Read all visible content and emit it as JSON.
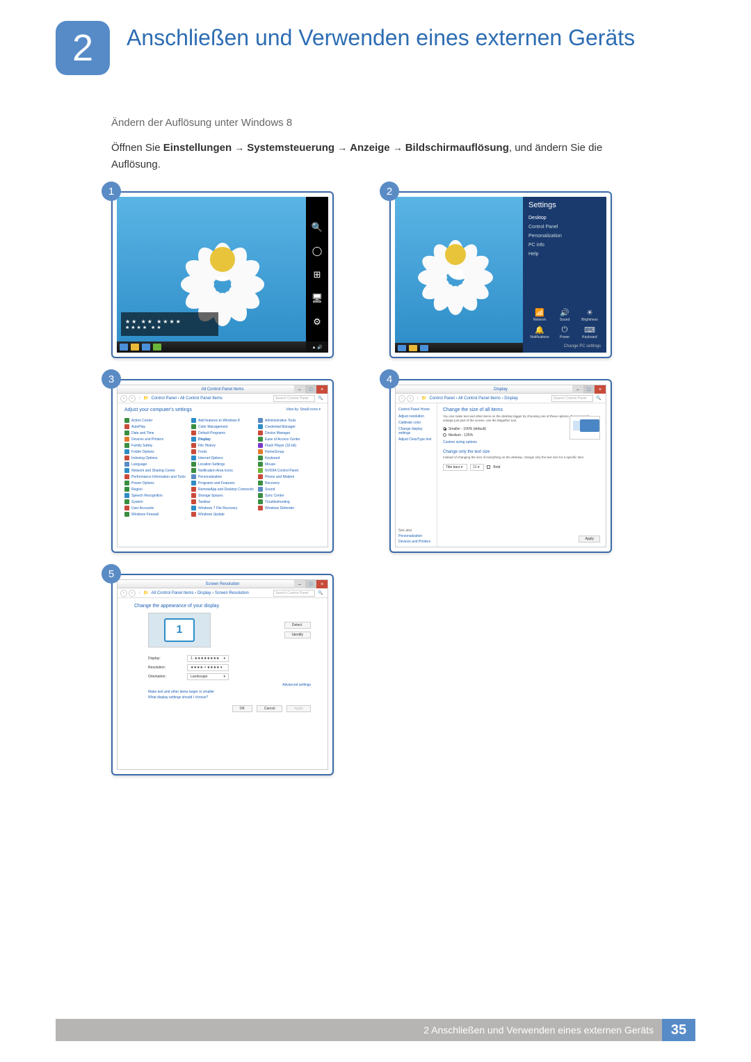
{
  "theme": {
    "accent": "#578bc8",
    "title_color": "#2d6db3",
    "frame_border": "#3a6aa8",
    "badge_bg": "#5a8bc5",
    "footer_bg": "#b6b5b3",
    "footer_accent": "#578bc8"
  },
  "chapter": {
    "number": "2",
    "title": "Anschließen und Verwenden eines externen Geräts"
  },
  "section": {
    "subhead": "Ändern der Auflösung unter Windows 8",
    "body_pre": "Öffnen Sie ",
    "path_settings": "Einstellungen",
    "path_cp": "Systemsteuerung",
    "path_display": "Anzeige",
    "path_res": "Bildschirmauflösung",
    "body_post": ", und ändern Sie die Auflösung."
  },
  "steps": {
    "s1": "1",
    "s2": "2",
    "s3": "3",
    "s4": "4",
    "s5": "5"
  },
  "shot1": {
    "clock_l1": "★★   ★★      ★★★★",
    "clock_l2": "★★★★  ★★",
    "charms": [
      "search",
      "share",
      "start",
      "devices",
      "settings"
    ]
  },
  "shot2": {
    "title": "Settings",
    "items": [
      "Desktop",
      "Control Panel",
      "Personalization",
      "PC info",
      "Help"
    ],
    "icons": [
      {
        "g": "📶",
        "l": "Network"
      },
      {
        "g": "🔊",
        "l": "Sound"
      },
      {
        "g": "☀",
        "l": "Brightness"
      },
      {
        "g": "🔔",
        "l": "Notifications"
      },
      {
        "g": "⏻",
        "l": "Power"
      },
      {
        "g": "⌨",
        "l": "Keyboard"
      }
    ],
    "change": "Change PC settings"
  },
  "shot3": {
    "title": "All Control Panel Items",
    "crumb": "Control Panel  ›  All Control Panel Items",
    "search": "Search Control Panel",
    "adjust": "Adjust your computer's settings",
    "view": "View by:   Small icons ▾",
    "items": [
      {
        "c": "#3a8e41",
        "t": "Action Center"
      },
      {
        "c": "#2d8cc7",
        "t": "Add features to Windows 8"
      },
      {
        "c": "#5a8bc5",
        "t": "Administrative Tools"
      },
      {
        "c": "#c94b3a",
        "t": "AutoPlay"
      },
      {
        "c": "#3a8e41",
        "t": "Color Management"
      },
      {
        "c": "#2d8cc7",
        "t": "Credential Manager"
      },
      {
        "c": "#3a8e41",
        "t": "Date and Time"
      },
      {
        "c": "#c94b3a",
        "t": "Default Programs"
      },
      {
        "c": "#c94b3a",
        "t": "Device Manager"
      },
      {
        "c": "#e37b2d",
        "t": "Devices and Printers"
      },
      {
        "c": "#2d8cc7",
        "t": "Display",
        "hl": true
      },
      {
        "c": "#3a8e41",
        "t": "Ease of Access Center"
      },
      {
        "c": "#3a8e41",
        "t": "Family Safety"
      },
      {
        "c": "#c94b3a",
        "t": "File History"
      },
      {
        "c": "#7b3ac9",
        "t": "Flash Player (32-bit)"
      },
      {
        "c": "#2d8cc7",
        "t": "Folder Options"
      },
      {
        "c": "#c94b3a",
        "t": "Fonts"
      },
      {
        "c": "#e37b2d",
        "t": "HomeGroup"
      },
      {
        "c": "#c94b3a",
        "t": "Indexing Options"
      },
      {
        "c": "#2d8cc7",
        "t": "Internet Options"
      },
      {
        "c": "#3a8e41",
        "t": "Keyboard"
      },
      {
        "c": "#5a8bc5",
        "t": "Language"
      },
      {
        "c": "#3a8e41",
        "t": "Location Settings"
      },
      {
        "c": "#3a8e41",
        "t": "Mouse"
      },
      {
        "c": "#2d8cc7",
        "t": "Network and Sharing Center"
      },
      {
        "c": "#3a8e41",
        "t": "Notification Area Icons"
      },
      {
        "c": "#6bb63a",
        "t": "NVIDIA Control Panel"
      },
      {
        "c": "#c94b3a",
        "t": "Performance Information and Tools"
      },
      {
        "c": "#5a8bc5",
        "t": "Personalization"
      },
      {
        "c": "#c94b3a",
        "t": "Phone and Modem"
      },
      {
        "c": "#3a8e41",
        "t": "Power Options"
      },
      {
        "c": "#2d8cc7",
        "t": "Programs and Features"
      },
      {
        "c": "#3a8e41",
        "t": "Recovery"
      },
      {
        "c": "#3a8e41",
        "t": "Region"
      },
      {
        "c": "#c94b3a",
        "t": "RemoteApp and Desktop Connections"
      },
      {
        "c": "#5a8bc5",
        "t": "Sound"
      },
      {
        "c": "#2d8cc7",
        "t": "Speech Recognition"
      },
      {
        "c": "#c94b3a",
        "t": "Storage Spaces"
      },
      {
        "c": "#3a8e41",
        "t": "Sync Center"
      },
      {
        "c": "#3a8e41",
        "t": "System"
      },
      {
        "c": "#c94b3a",
        "t": "Taskbar"
      },
      {
        "c": "#3a8e41",
        "t": "Troubleshooting"
      },
      {
        "c": "#c94b3a",
        "t": "User Accounts"
      },
      {
        "c": "#2d8cc7",
        "t": "Windows 7 File Recovery"
      },
      {
        "c": "#c94b3a",
        "t": "Windows Defender"
      },
      {
        "c": "#3a8e41",
        "t": "Windows Firewall"
      },
      {
        "c": "#c94b3a",
        "t": "Windows Update"
      }
    ]
  },
  "shot4": {
    "title": "Display",
    "crumb": "Control Panel  ›  All Control Panel Items  ›  Display",
    "search": "Search Control Panel",
    "side_head": "Control Panel Home",
    "side_links": [
      "Adjust resolution",
      "Calibrate color",
      "Change display settings",
      "Adjust ClearType text"
    ],
    "h1": "Change the size of all items",
    "desc": "You can make text and other items on the desktop bigger by choosing one of these options. To temporarily enlarge just part of the screen, use the Magnifier tool.",
    "opt1": "Smaller - 100% (default)",
    "opt2": "Medium - 125%",
    "ctx": "Custom sizing options",
    "h2": "Change only the text size",
    "desc2": "Instead of changing the size of everything on the desktop, change only the text size for a specific item.",
    "dd1": "Title bars",
    "dd2": "11",
    "chk": "Bold",
    "apply": "Apply",
    "seealso_t": "See also",
    "seealso_1": "Personalization",
    "seealso_2": "Devices and Printers"
  },
  "shot5": {
    "title": "Screen Resolution",
    "crumb": "All Control Panel Items  ›  Display  ›  Screen Resolution",
    "search": "Search Control Panel",
    "h1": "Change the appearance of your display",
    "mon": "1",
    "detect": "Detect",
    "identify": "Identify",
    "lbl_display": "Display:",
    "val_display": "1. ★★★★★★★★",
    "lbl_res": "Resolution:",
    "val_res": "★★★★ × ★★★★ ▾",
    "lbl_ori": "Orientation:",
    "val_ori": "Landscape",
    "adv": "Advanced settings",
    "lnk1": "Make text and other items larger or smaller",
    "lnk2": "What display settings should I choose?",
    "ok": "OK",
    "cancel": "Cancel",
    "apply": "Apply"
  },
  "footer": {
    "text": "2 Anschließen und Verwenden eines externen Geräts",
    "page": "35"
  }
}
